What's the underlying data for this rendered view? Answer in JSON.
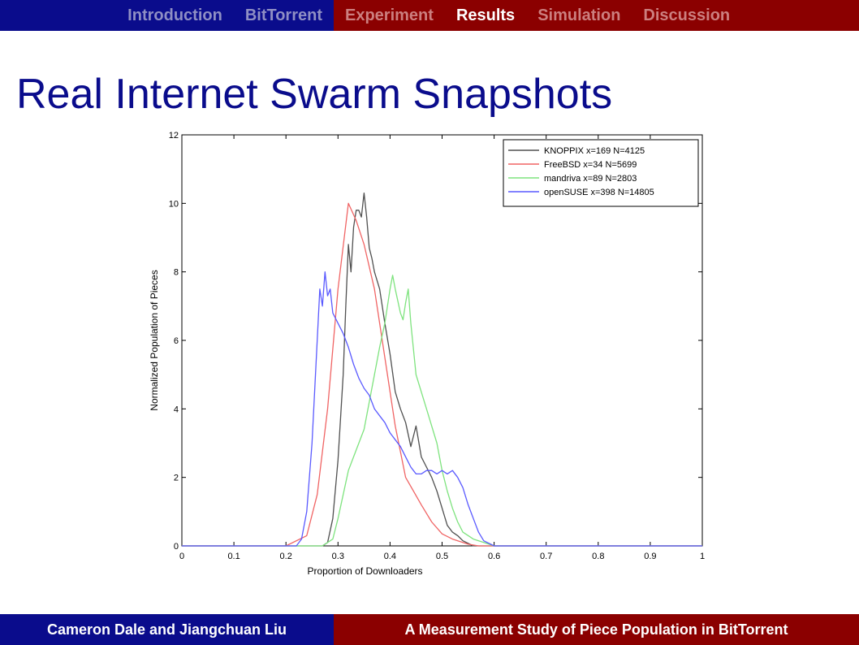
{
  "nav": {
    "left_items": [
      "Introduction",
      "BitTorrent"
    ],
    "right_items": [
      "Experiment",
      "Results",
      "Simulation",
      "Discussion"
    ],
    "active": "Results"
  },
  "title": "Real Internet Swarm Snapshots",
  "footer": {
    "authors": "Cameron Dale and Jiangchuan Liu",
    "paper_title": "A Measurement Study of Piece Population in BitTorrent"
  },
  "colors": {
    "nav_blue": "#0a0c8c",
    "nav_red": "#8b0000"
  },
  "chart_data": {
    "type": "line",
    "xlabel": "Proportion of Downloaders",
    "ylabel": "Normalized Population of Pieces",
    "xlim": [
      0,
      1
    ],
    "ylim": [
      0,
      12
    ],
    "xticks": [
      "0",
      "0.1",
      "0.2",
      "0.3",
      "0.4",
      "0.5",
      "0.6",
      "0.7",
      "0.8",
      "0.9",
      "1"
    ],
    "yticks": [
      "0",
      "2",
      "4",
      "6",
      "8",
      "10",
      "12"
    ],
    "grid": false,
    "legend_position": "top-right",
    "series": [
      {
        "name": "KNOPPIX x=169 N=4125",
        "color": "#505050",
        "points": [
          [
            0,
            0
          ],
          [
            0.27,
            0
          ],
          [
            0.28,
            0.1
          ],
          [
            0.29,
            0.8
          ],
          [
            0.3,
            2.5
          ],
          [
            0.31,
            5
          ],
          [
            0.315,
            7
          ],
          [
            0.32,
            8.8
          ],
          [
            0.325,
            8
          ],
          [
            0.33,
            9.3
          ],
          [
            0.335,
            9.8
          ],
          [
            0.34,
            9.8
          ],
          [
            0.345,
            9.6
          ],
          [
            0.35,
            10.3
          ],
          [
            0.355,
            9.6
          ],
          [
            0.36,
            8.7
          ],
          [
            0.365,
            8.4
          ],
          [
            0.37,
            8
          ],
          [
            0.38,
            7.5
          ],
          [
            0.39,
            6.5
          ],
          [
            0.4,
            5.6
          ],
          [
            0.41,
            4.5
          ],
          [
            0.42,
            4
          ],
          [
            0.43,
            3.6
          ],
          [
            0.44,
            2.9
          ],
          [
            0.45,
            3.5
          ],
          [
            0.46,
            2.6
          ],
          [
            0.47,
            2.3
          ],
          [
            0.48,
            2.0
          ],
          [
            0.49,
            1.6
          ],
          [
            0.5,
            1.1
          ],
          [
            0.51,
            0.6
          ],
          [
            0.52,
            0.4
          ],
          [
            0.53,
            0.3
          ],
          [
            0.54,
            0.15
          ],
          [
            0.56,
            0
          ],
          [
            1,
            0
          ]
        ]
      },
      {
        "name": "FreeBSD x=34 N=5699",
        "color": "#f06464",
        "points": [
          [
            0,
            0
          ],
          [
            0.2,
            0
          ],
          [
            0.24,
            0.3
          ],
          [
            0.26,
            1.5
          ],
          [
            0.28,
            4
          ],
          [
            0.3,
            7.5
          ],
          [
            0.32,
            10.0
          ],
          [
            0.335,
            9.5
          ],
          [
            0.35,
            8.8
          ],
          [
            0.37,
            7.5
          ],
          [
            0.39,
            5.5
          ],
          [
            0.41,
            3.5
          ],
          [
            0.43,
            2.0
          ],
          [
            0.46,
            1.2
          ],
          [
            0.48,
            0.7
          ],
          [
            0.5,
            0.35
          ],
          [
            0.52,
            0.2
          ],
          [
            0.55,
            0.05
          ],
          [
            0.57,
            0
          ],
          [
            1,
            0
          ]
        ]
      },
      {
        "name": "mandriva x=89 N=2803",
        "color": "#7ee37e",
        "points": [
          [
            0,
            0
          ],
          [
            0.27,
            0
          ],
          [
            0.29,
            0.2
          ],
          [
            0.3,
            0.8
          ],
          [
            0.31,
            1.5
          ],
          [
            0.32,
            2.2
          ],
          [
            0.33,
            2.6
          ],
          [
            0.35,
            3.4
          ],
          [
            0.37,
            5
          ],
          [
            0.38,
            5.8
          ],
          [
            0.39,
            6.5
          ],
          [
            0.4,
            7.5
          ],
          [
            0.405,
            7.9
          ],
          [
            0.41,
            7.5
          ],
          [
            0.42,
            6.8
          ],
          [
            0.425,
            6.6
          ],
          [
            0.43,
            7.1
          ],
          [
            0.435,
            7.5
          ],
          [
            0.44,
            6.5
          ],
          [
            0.45,
            5
          ],
          [
            0.47,
            4.0
          ],
          [
            0.49,
            3
          ],
          [
            0.5,
            2.2
          ],
          [
            0.51,
            1.6
          ],
          [
            0.52,
            1.1
          ],
          [
            0.53,
            0.7
          ],
          [
            0.54,
            0.4
          ],
          [
            0.56,
            0.2
          ],
          [
            0.58,
            0.1
          ],
          [
            0.6,
            0
          ],
          [
            1,
            0
          ]
        ]
      },
      {
        "name": "openSUSE x=398 N=14805",
        "color": "#5a5aff",
        "points": [
          [
            0,
            0
          ],
          [
            0.22,
            0
          ],
          [
            0.23,
            0.2
          ],
          [
            0.24,
            1
          ],
          [
            0.25,
            3
          ],
          [
            0.26,
            6
          ],
          [
            0.265,
            7.5
          ],
          [
            0.27,
            7.0
          ],
          [
            0.275,
            8.0
          ],
          [
            0.28,
            7.3
          ],
          [
            0.285,
            7.5
          ],
          [
            0.29,
            6.8
          ],
          [
            0.3,
            6.5
          ],
          [
            0.31,
            6.2
          ],
          [
            0.32,
            5.8
          ],
          [
            0.33,
            5.3
          ],
          [
            0.34,
            4.9
          ],
          [
            0.35,
            4.6
          ],
          [
            0.36,
            4.4
          ],
          [
            0.37,
            4.0
          ],
          [
            0.38,
            3.8
          ],
          [
            0.39,
            3.6
          ],
          [
            0.4,
            3.3
          ],
          [
            0.41,
            3.1
          ],
          [
            0.42,
            2.9
          ],
          [
            0.43,
            2.6
          ],
          [
            0.44,
            2.3
          ],
          [
            0.45,
            2.1
          ],
          [
            0.46,
            2.1
          ],
          [
            0.47,
            2.2
          ],
          [
            0.48,
            2.2
          ],
          [
            0.49,
            2.1
          ],
          [
            0.5,
            2.2
          ],
          [
            0.51,
            2.1
          ],
          [
            0.52,
            2.2
          ],
          [
            0.53,
            2.0
          ],
          [
            0.54,
            1.7
          ],
          [
            0.55,
            1.2
          ],
          [
            0.56,
            0.8
          ],
          [
            0.57,
            0.4
          ],
          [
            0.58,
            0.15
          ],
          [
            0.6,
            0
          ],
          [
            1,
            0
          ]
        ]
      }
    ]
  }
}
